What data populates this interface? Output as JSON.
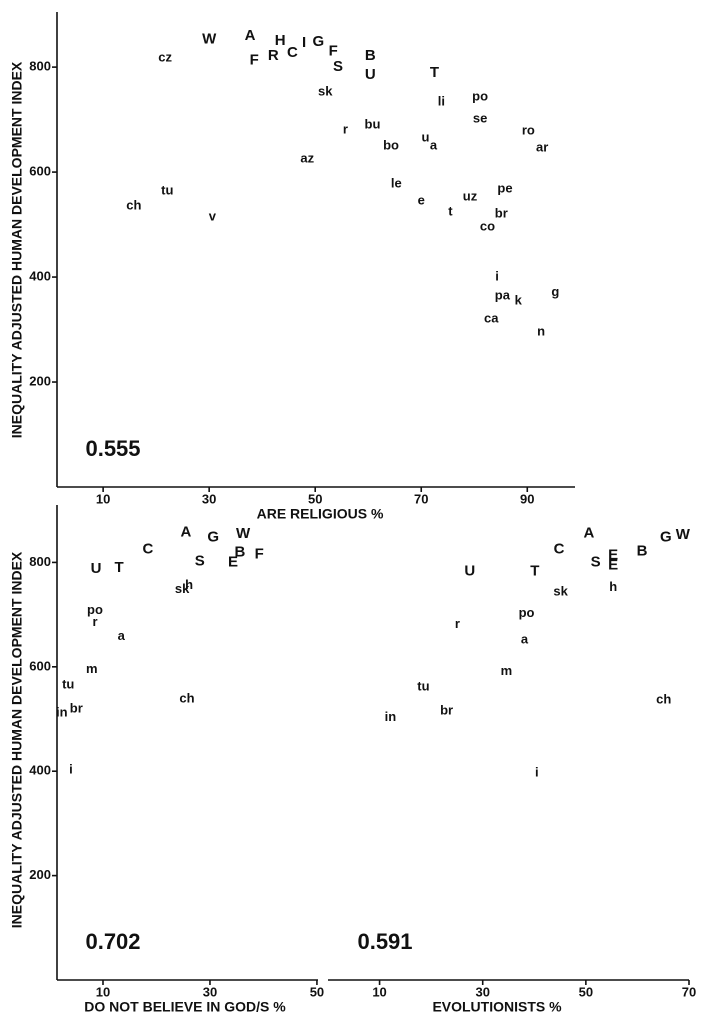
{
  "chart_data": [
    {
      "type": "scatter",
      "xlabel": "ARE RELIGIOUS %",
      "ylabel": "INEQUALITY ADJUSTED HUMAN DEVELOPMENT INDEX",
      "annotation": "0.555",
      "xlim": [
        1.3,
        99
      ],
      "ylim": [
        0,
        905
      ],
      "xticks": [
        10,
        30,
        50,
        70,
        90
      ],
      "yticks": [
        200,
        400,
        600,
        800
      ],
      "color": "#111111",
      "point_labels": [
        "W",
        "A",
        "F",
        "H",
        "R",
        "C",
        "I",
        "G",
        "F",
        "S",
        "B",
        "U",
        "cz",
        "T",
        "sk",
        "po",
        "li",
        "se",
        "bu",
        "r",
        "ro",
        "u",
        "a",
        "bo",
        "ar",
        "az",
        "le",
        "pe",
        "tu",
        "uz",
        "e",
        "ch",
        "t",
        "v",
        "br",
        "co",
        "i",
        "g",
        "pa",
        "k",
        "ca",
        "n"
      ],
      "x": [
        30,
        37.7,
        38.5,
        43.4,
        42.1,
        45.7,
        47.9,
        50.6,
        53.4,
        54.3,
        60.4,
        60.4,
        21.7,
        72.5,
        51.9,
        81.1,
        73.8,
        81.1,
        60.8,
        55.7,
        90.2,
        70.8,
        72.3,
        64.3,
        92.8,
        48.5,
        65.3,
        85.8,
        22.1,
        79.2,
        70,
        15.8,
        75.5,
        30.6,
        85.1,
        82.5,
        84.3,
        95.3,
        85.3,
        88.3,
        83.2,
        92.6
      ],
      "values": [
        853,
        859,
        813,
        850,
        821,
        827,
        846,
        848,
        830,
        800,
        821,
        785,
        817,
        789,
        752,
        743,
        733,
        701,
        690,
        680,
        678,
        665,
        650,
        650,
        646,
        625,
        577,
        568,
        564,
        552,
        545,
        535,
        524,
        514,
        520,
        495,
        400,
        370,
        364,
        354,
        320,
        295
      ]
    },
    {
      "type": "scatter",
      "xlabel": "DO NOT BELIEVE IN GOD/S %",
      "ylabel": "INEQUALITY ADJUSTED HUMAN DEVELOPMENT INDEX",
      "annotation": "0.702",
      "xlim": [
        1.4,
        50.2
      ],
      "ylim": [
        0,
        910
      ],
      "xticks": [
        10,
        30,
        50
      ],
      "yticks": [
        200,
        400,
        600,
        800
      ],
      "color": "#111111",
      "point_labels": [
        "A",
        "G",
        "W",
        "C",
        "B",
        "F",
        "S",
        "E",
        "U",
        "T",
        "h",
        "sk",
        "po",
        "r",
        "a",
        "m",
        "tu",
        "ch",
        "br",
        "in",
        "i"
      ],
      "x": [
        25.5,
        30.6,
        36.2,
        18.4,
        35.6,
        39.2,
        28.1,
        34.3,
        8.7,
        13,
        26.1,
        24.8,
        8.5,
        8.5,
        13.4,
        7.9,
        3.5,
        25.7,
        5,
        2.3,
        4
      ],
      "values": [
        857,
        848,
        854,
        825,
        819,
        815,
        802,
        800,
        787,
        789,
        756,
        748,
        708,
        685,
        658,
        595,
        565,
        538,
        519,
        511,
        402
      ]
    },
    {
      "type": "scatter",
      "xlabel": "EVOLUTIONISTS %",
      "annotation": "0.591",
      "xlim": [
        0,
        70
      ],
      "ylim": [
        0,
        910
      ],
      "xticks": [
        10,
        30,
        50,
        70
      ],
      "color": "#111111",
      "point_labels": [
        "A",
        "G",
        "W",
        "C",
        "B",
        "E",
        "S",
        "E",
        "U",
        "T",
        "h",
        "sk",
        "po",
        "r",
        "a",
        "m",
        "tu",
        "ch",
        "br",
        "in",
        "i"
      ],
      "x": [
        50.6,
        65.5,
        68.8,
        44.8,
        60.9,
        55.3,
        51.9,
        55.3,
        27.5,
        40.1,
        55.3,
        45.1,
        38.5,
        25.1,
        38.1,
        34.6,
        18.5,
        65.1,
        23,
        12.1,
        40.5
      ],
      "values": [
        855,
        848,
        852,
        825,
        821,
        813,
        800,
        794,
        783,
        783,
        752,
        743,
        702,
        681,
        651,
        591,
        561,
        536,
        515,
        503,
        396
      ]
    }
  ]
}
